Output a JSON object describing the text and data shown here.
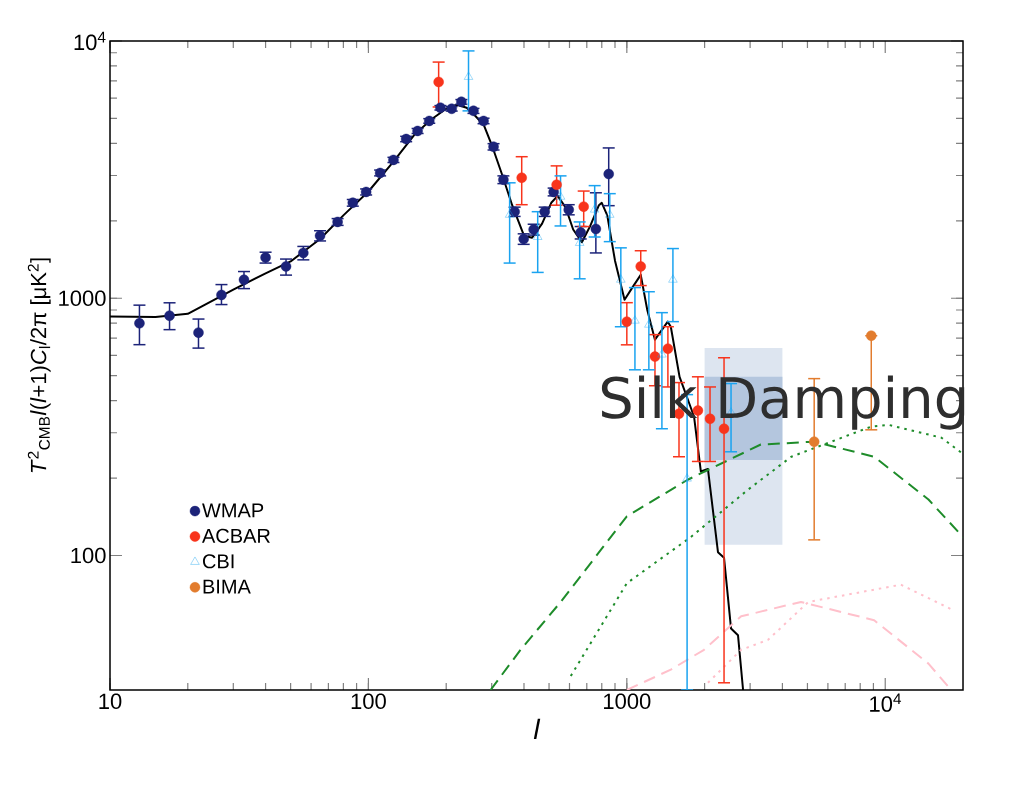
{
  "chart_data": {
    "type": "scatter",
    "xlabel": "l",
    "ylabel": "*T*$^{2}$$_{CMB}$*l*(*l*+1)*C*$_{l}$/2π [μK$^{2}$]",
    "annotations": [
      "Silk Damping"
    ],
    "log": "xy",
    "legend": "bottom left",
    "xlim": [
      10,
      20000
    ],
    "ylim": [
      30,
      10000
    ],
    "xticks": [
      10,
      100,
      1000,
      {
        "value": 10000,
        "label": "10$^{4}$"
      }
    ],
    "yticks": [
      100,
      1000,
      {
        "value": 10000,
        "label": "10$^{4}$"
      }
    ],
    "series": [
      {
        "type": "area",
        "color": "#dde5f0",
        "x": [
          2000,
          4000
        ],
        "lower": [
          110,
          110
        ],
        "upper": [
          640,
          640
        ],
        "values": [
          null,
          null
        ]
      },
      {
        "type": "area",
        "color": "#b4c6de",
        "x": [
          2000,
          4000
        ],
        "lower": [
          235,
          235
        ],
        "upper": [
          495,
          495
        ],
        "values": [
          null,
          null
        ]
      },
      {
        "type": "line",
        "color": "#000000",
        "line_style": "solid",
        "marker": "none",
        "x": [
          10,
          15,
          20,
          30,
          40,
          50,
          65,
          80,
          100,
          125,
          150,
          175,
          200,
          220,
          240,
          260,
          280,
          300,
          330,
          360,
          400,
          430,
          470,
          510,
          540,
          580,
          620,
          670,
          720,
          780,
          800,
          840,
          900,
          980,
          1050,
          1132,
          1200,
          1285,
          1440,
          1480,
          1600,
          1820,
          1935,
          2060,
          2253,
          2378,
          2531,
          2693,
          2818
        ],
        "values": [
          850,
          845,
          870,
          1080,
          1250,
          1390,
          1700,
          2100,
          2600,
          3400,
          4300,
          4950,
          5450,
          5650,
          5500,
          5100,
          4700,
          3950,
          3000,
          2300,
          1750,
          1720,
          1950,
          2350,
          2500,
          2250,
          1850,
          1650,
          1900,
          2300,
          2350,
          2100,
          1400,
          987,
          1100,
          1233,
          900,
          690,
          811,
          775,
          495,
          347,
          212,
          217,
          103,
          98,
          52,
          49,
          30
        ]
      },
      {
        "type": "line",
        "color": "#1e8c2a",
        "line_style": "dashed",
        "marker": "none",
        "x": [
          297,
          388,
          555,
          1000,
          1720,
          3300,
          5310,
          9060,
          14700,
          20000
        ],
        "values": [
          30,
          43,
          66,
          142,
          197,
          270,
          277,
          242,
          165,
          118
        ]
      },
      {
        "type": "line",
        "color": "#1e8c2a",
        "line_style": "dotted",
        "marker": "none",
        "x": [
          607,
          1000,
          1770,
          2940,
          4330,
          8830,
          10300,
          16500,
          19700
        ],
        "values": [
          34,
          78,
          118,
          180,
          242,
          317,
          322,
          287,
          251
        ]
      },
      {
        "type": "line",
        "color": "#ffc0cb",
        "line_style": "dashed",
        "marker": "none",
        "x": [
          1000,
          1480,
          1990,
          2770,
          4720,
          9060,
          14700,
          17500
        ],
        "values": [
          30,
          36,
          43,
          58,
          66,
          56,
          38,
          31
        ]
      },
      {
        "type": "line",
        "color": "#ffc0cb",
        "line_style": "dotted",
        "marker": "none",
        "x": [
          2060,
          2770,
          3520,
          5040,
          11500,
          18500
        ],
        "values": [
          32,
          43,
          47,
          66,
          77,
          61
        ]
      },
      {
        "name": "WMAP",
        "color": "#1c2379",
        "marker": "circle",
        "x": [
          13,
          17,
          22,
          27,
          33,
          40,
          48,
          56,
          65,
          76,
          87,
          98,
          111,
          125,
          140,
          155,
          172,
          190,
          210,
          229,
          255,
          279,
          305,
          333,
          368,
          399,
          436,
          481,
          521,
          596,
          663,
          759,
          851
        ],
        "values": [
          800,
          855,
          735,
          1030,
          1180,
          1440,
          1330,
          1500,
          1750,
          1980,
          2350,
          2590,
          3070,
          3450,
          4160,
          4470,
          4890,
          5500,
          5450,
          5800,
          5350,
          4890,
          3880,
          2890,
          2170,
          1700,
          1850,
          2170,
          2590,
          2210,
          1800,
          1860,
          3040
        ],
        "errors": [
          [
            660,
            940
          ],
          [
            755,
            960
          ],
          [
            640,
            830
          ],
          [
            945,
            1130
          ],
          [
            1090,
            1270
          ],
          [
            1370,
            1510
          ],
          [
            1230,
            1420
          ],
          [
            1410,
            1590
          ],
          [
            1670,
            1830
          ],
          [
            1920,
            2040
          ],
          [
            2280,
            2420
          ],
          [
            2520,
            2660
          ],
          [
            2990,
            3150
          ],
          [
            3370,
            3530
          ],
          [
            4060,
            4260
          ],
          [
            4370,
            4570
          ],
          [
            4790,
            4990
          ],
          [
            5390,
            5610
          ],
          [
            5340,
            5560
          ],
          [
            5680,
            5920
          ],
          [
            5230,
            5470
          ],
          [
            4770,
            5010
          ],
          [
            3770,
            3990
          ],
          [
            2790,
            2990
          ],
          [
            2080,
            2260
          ],
          [
            1620,
            1780
          ],
          [
            1760,
            1940
          ],
          [
            2080,
            2260
          ],
          [
            2500,
            2680
          ],
          [
            2110,
            2310
          ],
          [
            1700,
            1900
          ],
          [
            1500,
            2570
          ],
          [
            2290,
            3840
          ]
        ]
      },
      {
        "name": "ACBAR",
        "color": "#f8341c",
        "marker": "circle",
        "x": [
          187,
          392,
          535,
          681,
          1000,
          1132,
          1285,
          1442,
          1592,
          1884,
          2099,
          2378
        ],
        "values": [
          6930,
          2940,
          2760,
          2270,
          811,
          1330,
          593,
          637,
          356,
          366,
          340,
          311
        ],
        "errors": [
          [
            5540,
            8280
          ],
          [
            2310,
            3550
          ],
          [
            2300,
            3270
          ],
          [
            1900,
            2610
          ],
          [
            659,
            961
          ],
          [
            1120,
            1530
          ],
          [
            457,
            722
          ],
          [
            452,
            775
          ],
          [
            242,
            470
          ],
          [
            232,
            495
          ],
          [
            232,
            452
          ],
          [
            32,
            587
          ]
        ]
      },
      {
        "name": "CBI",
        "color": "#1aa3f0",
        "marker": "triangle",
        "x": [
          244,
          352,
          452,
          554,
          657,
          751,
          859,
          948,
          1075,
          1217,
          1367,
          1508,
          1711,
          2531
        ],
        "values": [
          7250,
          2110,
          1730,
          2480,
          1640,
          2210,
          2110,
          1180,
          818,
          789,
          604,
          1180,
          199,
          359
        ],
        "errors": [
          [
            5350,
            9150
          ],
          [
            1370,
            2810
          ],
          [
            1260,
            2170
          ],
          [
            1910,
            2990
          ],
          [
            1190,
            1980
          ],
          [
            1730,
            2740
          ],
          [
            1660,
            2550
          ],
          [
            775,
            1570
          ],
          [
            527,
            1100
          ],
          [
            527,
            1060
          ],
          [
            311,
            879
          ],
          [
            811,
            1560
          ],
          [
            30,
            422
          ],
          [
            253,
            466
          ]
        ]
      },
      {
        "name": "BIMA",
        "color": "#e27c2e",
        "marker": "circle",
        "x": [
          5310,
          8830
        ],
        "values": [
          277,
          715
        ],
        "errors": [
          [
            115,
            487
          ],
          [
            308,
            715
          ]
        ]
      }
    ]
  }
}
